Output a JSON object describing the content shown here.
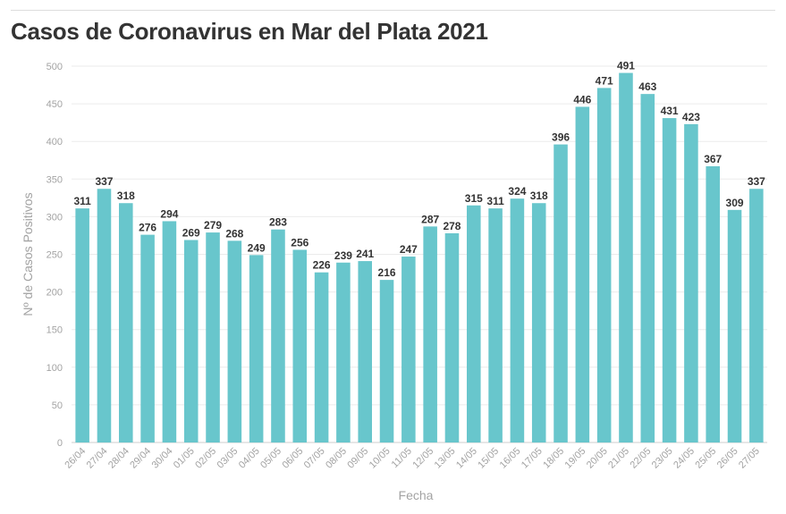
{
  "chart_data": {
    "type": "bar",
    "title": "Casos de Coronavirus en Mar del Plata 2021",
    "xlabel": "Fecha",
    "ylabel": "Nº de Casos Positivos",
    "ylim": [
      0,
      500
    ],
    "yticks": [
      0,
      50,
      100,
      150,
      200,
      250,
      300,
      350,
      400,
      450,
      500
    ],
    "grid": true,
    "bar_color": "#68c6cc",
    "categories": [
      "26/04",
      "27/04",
      "28/04",
      "29/04",
      "30/04",
      "01/05",
      "02/05",
      "03/05",
      "04/05",
      "05/05",
      "06/05",
      "07/05",
      "08/05",
      "09/05",
      "10/05",
      "11/05",
      "12/05",
      "13/05",
      "14/05",
      "15/05",
      "16/05",
      "17/05",
      "18/05",
      "19/05",
      "20/05",
      "21/05",
      "22/05",
      "23/05",
      "24/05",
      "25/05",
      "26/05",
      "27/05"
    ],
    "values": [
      311,
      337,
      318,
      276,
      294,
      269,
      279,
      268,
      249,
      283,
      256,
      226,
      239,
      241,
      216,
      247,
      287,
      278,
      315,
      311,
      324,
      318,
      396,
      446,
      471,
      491,
      463,
      431,
      423,
      367,
      309,
      337
    ]
  }
}
